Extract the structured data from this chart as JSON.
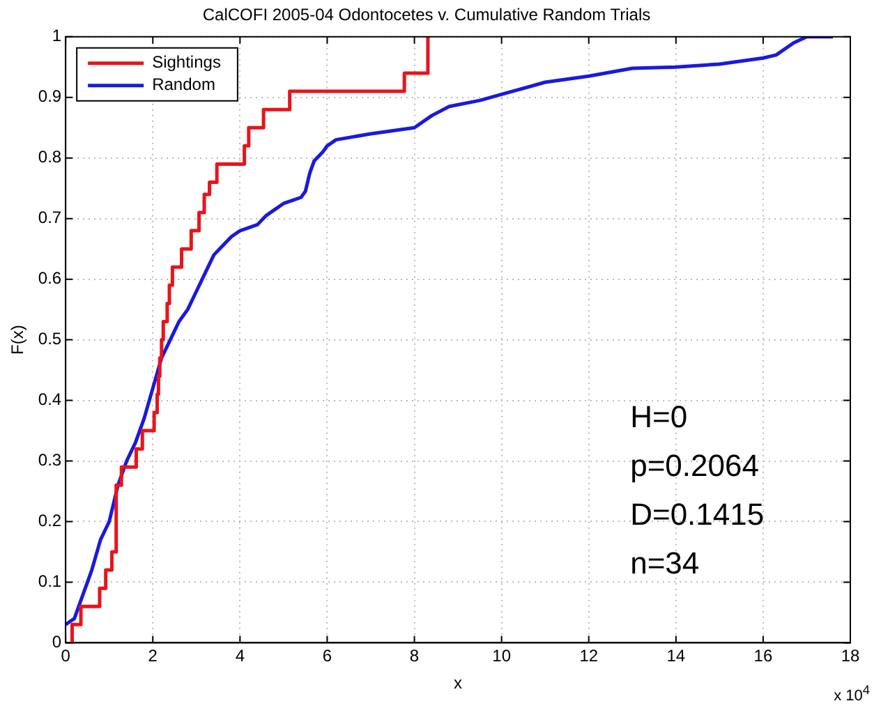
{
  "chart_data": {
    "type": "step",
    "title": "CalCOFI 2005-04 Odontocetes v. Cumulative Random Trials",
    "xlabel": "x",
    "ylabel": "F(x)",
    "xlim": [
      0,
      18
    ],
    "xticks": [
      0,
      2,
      4,
      6,
      8,
      10,
      12,
      14,
      16,
      18
    ],
    "ylim": [
      0,
      1
    ],
    "yticks": [
      0,
      0.1,
      0.2,
      0.3,
      0.4,
      0.5,
      0.6,
      0.7,
      0.8,
      0.9,
      1
    ],
    "grid": true,
    "legend": "top left",
    "annotations": [
      "H=0",
      "p=0.2064",
      "D=0.1415",
      "n=34",
      "x 10$^{4}$"
    ],
    "series": [
      {
        "name": "Sightings",
        "color": "#e8141c",
        "type": "step",
        "x": [
          0.15,
          0.15,
          0.35,
          0.78,
          0.92,
          1.06,
          1.16,
          1.28,
          1.62,
          1.76,
          2.03,
          2.1,
          2.13,
          2.16,
          2.2,
          2.24,
          2.33,
          2.38,
          2.45,
          2.66,
          2.88,
          3.06,
          3.18,
          3.3,
          3.47,
          4.1,
          4.2,
          4.54,
          5.14,
          7.77,
          8.31
        ],
        "values": [
          0,
          0.03,
          0.06,
          0.09,
          0.12,
          0.15,
          0.26,
          0.29,
          0.32,
          0.35,
          0.38,
          0.41,
          0.44,
          0.47,
          0.5,
          0.53,
          0.56,
          0.59,
          0.62,
          0.65,
          0.68,
          0.71,
          0.74,
          0.76,
          0.79,
          0.82,
          0.85,
          0.88,
          0.91,
          0.94,
          1
        ]
      },
      {
        "name": "Random",
        "color": "#1a1adc",
        "type": "line",
        "x": [
          0,
          0.2,
          0.4,
          0.6,
          0.8,
          1.0,
          1.2,
          1.4,
          1.6,
          1.8,
          2.0,
          2.2,
          2.4,
          2.6,
          2.8,
          3.0,
          3.2,
          3.4,
          3.6,
          3.8,
          4.0,
          4.4,
          4.6,
          4.8,
          5.0,
          5.2,
          5.4,
          5.5,
          5.6,
          5.7,
          5.9,
          6.0,
          6.2,
          7.0,
          8.0,
          8.4,
          8.8,
          9.5,
          10,
          11,
          12,
          13,
          14,
          15,
          16,
          16.3,
          16.7,
          17,
          17.6
        ],
        "values": [
          0.03,
          0.04,
          0.08,
          0.12,
          0.17,
          0.2,
          0.26,
          0.3,
          0.33,
          0.37,
          0.42,
          0.47,
          0.5,
          0.53,
          0.55,
          0.58,
          0.61,
          0.64,
          0.655,
          0.67,
          0.68,
          0.69,
          0.705,
          0.715,
          0.725,
          0.73,
          0.735,
          0.745,
          0.775,
          0.795,
          0.81,
          0.82,
          0.83,
          0.84,
          0.85,
          0.87,
          0.885,
          0.895,
          0.905,
          0.925,
          0.935,
          0.948,
          0.95,
          0.955,
          0.965,
          0.97,
          0.99,
          1,
          1
        ]
      }
    ]
  }
}
